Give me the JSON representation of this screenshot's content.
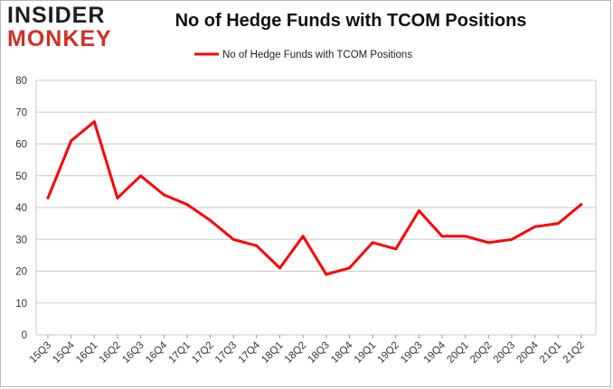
{
  "logo": {
    "line1": "INSIDER",
    "line2": "MONKEY"
  },
  "chart_data": {
    "type": "line",
    "title": "No of Hedge Funds with TCOM Positions",
    "xlabel": "",
    "ylabel": "",
    "categories": [
      "15Q3",
      "15Q4",
      "16Q1",
      "16Q2",
      "16Q3",
      "16Q4",
      "17Q1",
      "17Q2",
      "17Q3",
      "17Q4",
      "18Q1",
      "18Q2",
      "18Q3",
      "18Q4",
      "19Q1",
      "19Q2",
      "19Q3",
      "19Q4",
      "20Q1",
      "20Q2",
      "20Q3",
      "20Q4",
      "21Q1",
      "21Q2"
    ],
    "series": [
      {
        "name": "No of Hedge Funds with TCOM Positions",
        "values": [
          43,
          61,
          67,
          43,
          50,
          44,
          41,
          36,
          30,
          28,
          21,
          31,
          19,
          21,
          29,
          27,
          39,
          31,
          31,
          29,
          30,
          34,
          35,
          41
        ],
        "color": "#ff0000"
      }
    ],
    "ylim": [
      0,
      80
    ],
    "yticks": [
      0,
      10,
      20,
      30,
      40,
      50,
      60,
      70,
      80
    ],
    "grid": true,
    "legend_position": "top-center"
  }
}
